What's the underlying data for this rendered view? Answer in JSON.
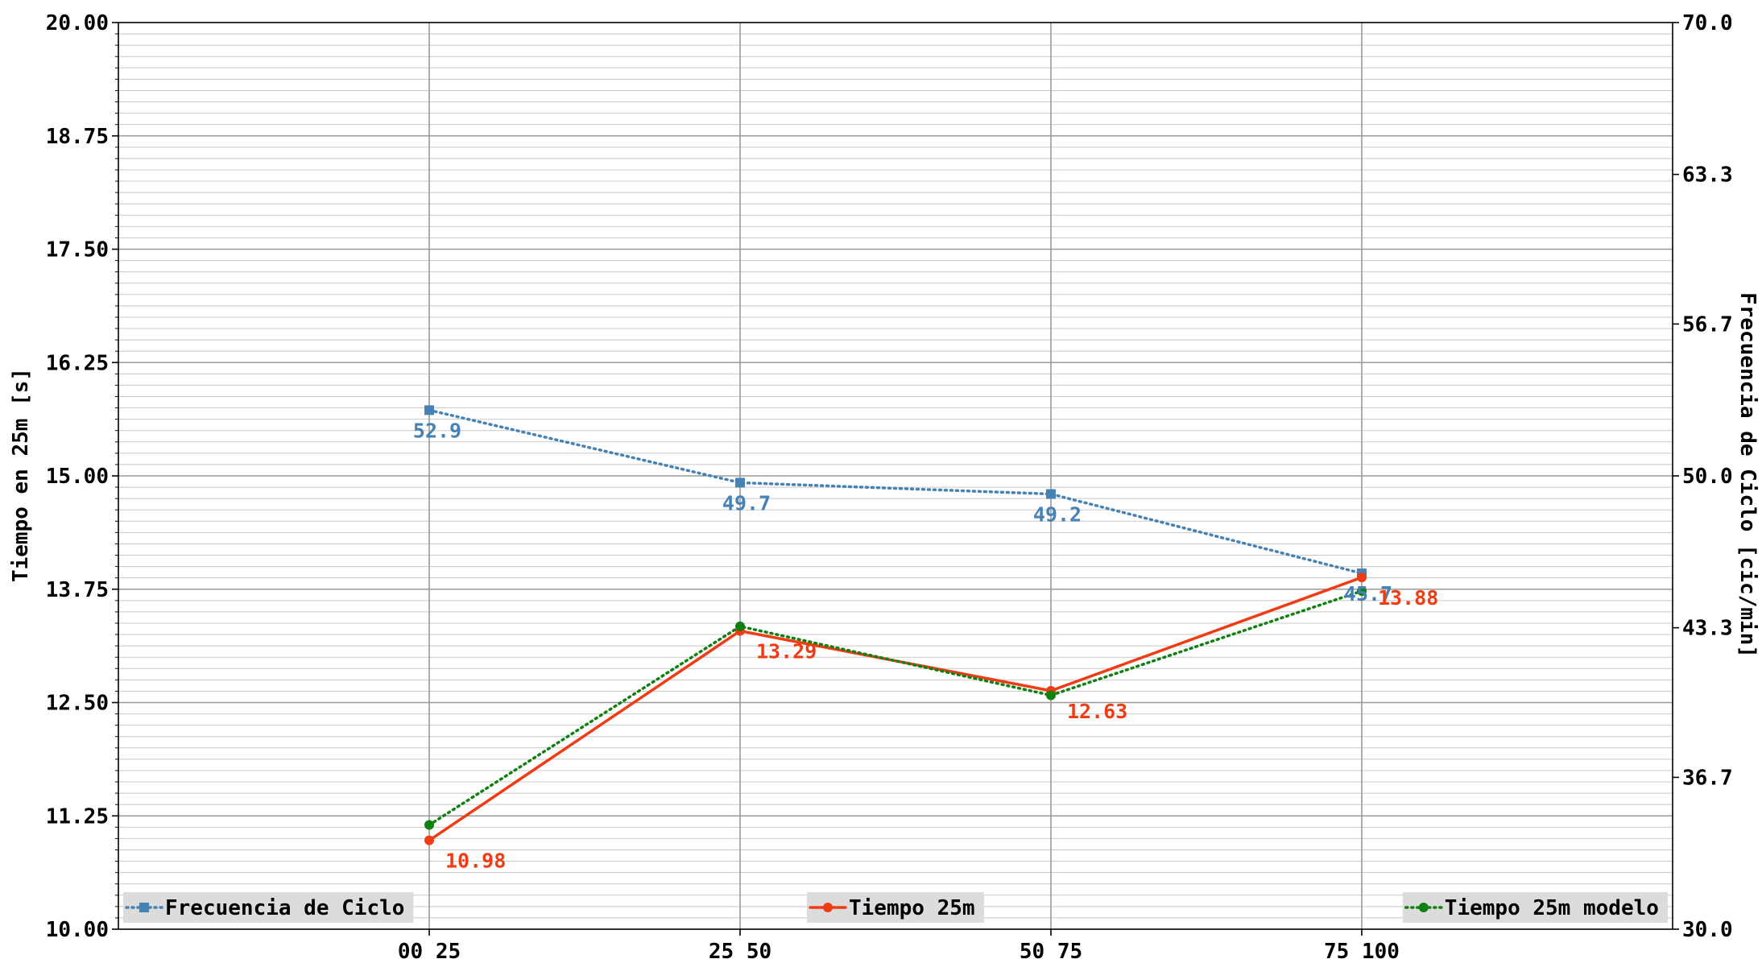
{
  "chart_data": {
    "type": "line",
    "categories": [
      "00_25",
      "25_50",
      "50_75",
      "75_100"
    ],
    "ylabel": "Tiempo en 25m [s]",
    "ylabel_right": "Frecuencia de Ciclo [cic/min]",
    "ylim": [
      10.0,
      20.0
    ],
    "ylim_right": [
      30.0,
      70.0
    ],
    "yticks": [
      "10.00",
      "11.25",
      "12.50",
      "13.75",
      "15.00",
      "16.25",
      "17.50",
      "18.75",
      "20.00"
    ],
    "yticks_right": [
      "30.0",
      "36.7",
      "43.3",
      "50.0",
      "56.7",
      "63.3",
      "70.0"
    ],
    "grid": true,
    "series": [
      {
        "name": "Frecuencia de Ciclo",
        "axis": "right",
        "values": [
          52.9,
          49.7,
          49.2,
          45.7
        ],
        "labels": [
          "52.9",
          "49.7",
          "49.2",
          "45.7"
        ],
        "color": "#4682b4",
        "style": "dotted",
        "marker": "square",
        "legend_position": "bottom-left"
      },
      {
        "name": "Tiempo 25m",
        "axis": "left",
        "values": [
          10.98,
          13.29,
          12.63,
          13.88
        ],
        "labels": [
          "10.98",
          "13.29",
          "12.63",
          "13.88"
        ],
        "color": "#f03c14",
        "style": "solid",
        "marker": "circle",
        "legend_position": "bottom-center"
      },
      {
        "name": "Tiempo 25m modelo",
        "axis": "left",
        "values": [
          11.15,
          13.34,
          12.58,
          13.73
        ],
        "color": "#108010",
        "style": "dotted",
        "marker": "circle",
        "legend_position": "bottom-right"
      }
    ]
  }
}
